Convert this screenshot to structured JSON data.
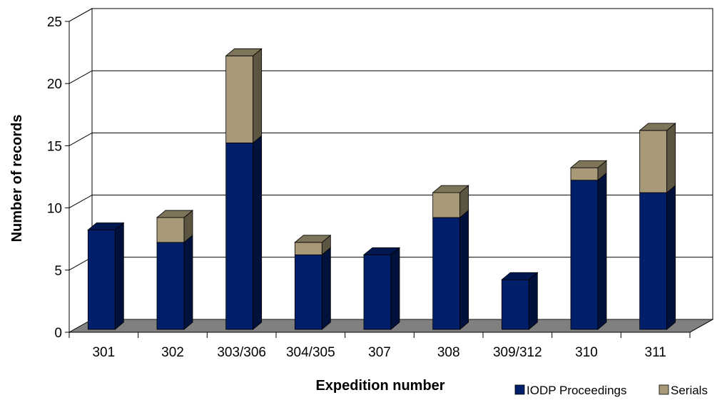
{
  "chart_data": {
    "type": "bar",
    "stacked": true,
    "three_d": true,
    "categories": [
      "301",
      "302",
      "303/306",
      "304/305",
      "307",
      "308",
      "309/312",
      "310",
      "311"
    ],
    "series": [
      {
        "name": "IODP Proceedings",
        "values": [
          8,
          7,
          15,
          6,
          6,
          9,
          4,
          12,
          11
        ],
        "color": "#001f6b"
      },
      {
        "name": "Serials",
        "values": [
          0,
          2,
          7,
          1,
          0,
          2,
          0,
          1,
          5
        ],
        "color": "#a89a78"
      }
    ],
    "xlabel": "Expedition number",
    "ylabel": "Number of records",
    "ylim": [
      0,
      25
    ],
    "yticks": [
      0,
      5,
      10,
      15,
      20,
      25
    ],
    "grid": true,
    "legend_position": "bottom-right",
    "floor_color": "#808080"
  }
}
